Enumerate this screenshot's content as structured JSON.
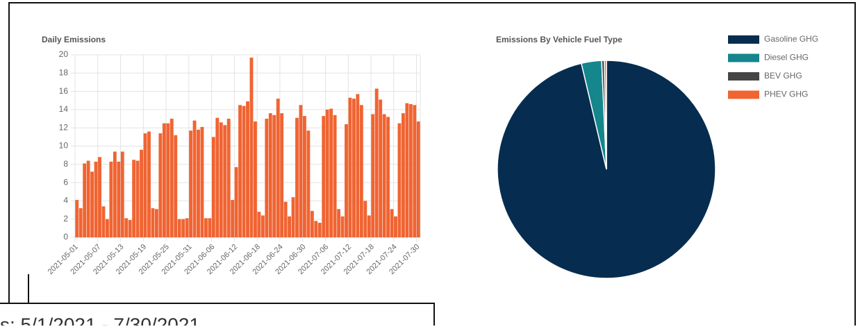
{
  "chart_data": [
    {
      "type": "bar",
      "title": "Daily Emissions",
      "color": "#f06432",
      "grid": true,
      "ylim": [
        0,
        20
      ],
      "yticks": [
        0,
        2,
        4,
        6,
        8,
        10,
        12,
        14,
        16,
        18,
        20
      ],
      "categories": [
        "2021-05-01",
        null,
        null,
        null,
        null,
        null,
        "2021-05-07",
        null,
        null,
        null,
        null,
        null,
        "2021-05-13",
        null,
        null,
        null,
        null,
        null,
        "2021-05-19",
        null,
        null,
        null,
        null,
        null,
        "2021-05-25",
        null,
        null,
        null,
        null,
        null,
        "2021-05-31",
        null,
        null,
        null,
        null,
        null,
        "2021-06-06",
        null,
        null,
        null,
        null,
        null,
        "2021-06-12",
        null,
        null,
        null,
        null,
        null,
        "2021-06-18",
        null,
        null,
        null,
        null,
        null,
        "2021-06-24",
        null,
        null,
        null,
        null,
        null,
        "2021-06-30",
        null,
        null,
        null,
        null,
        null,
        "2021-07-06",
        null,
        null,
        null,
        null,
        null,
        "2021-07-12",
        null,
        null,
        null,
        null,
        null,
        "2021-07-18",
        null,
        null,
        null,
        null,
        null,
        "2021-07-24",
        null,
        null,
        null,
        null,
        null,
        "2021-07-30"
      ],
      "values": [
        4.1,
        3.2,
        8.1,
        8.4,
        7.2,
        8.3,
        8.8,
        3.4,
        2.0,
        8.3,
        9.4,
        8.3,
        9.4,
        2.1,
        1.9,
        8.5,
        8.4,
        9.6,
        11.4,
        11.6,
        3.2,
        3.1,
        11.4,
        12.5,
        12.5,
        13.0,
        11.2,
        2.0,
        2.0,
        2.1,
        11.7,
        12.8,
        11.8,
        12.1,
        2.1,
        2.1,
        11.0,
        13.1,
        12.6,
        12.3,
        13.0,
        4.1,
        7.7,
        14.5,
        14.4,
        14.9,
        19.7,
        12.7,
        2.8,
        2.4,
        13.0,
        13.6,
        13.4,
        15.2,
        13.6,
        3.9,
        2.3,
        4.4,
        13.1,
        14.5,
        13.3,
        11.7,
        2.9,
        1.8,
        1.6,
        13.3,
        14.0,
        14.1,
        13.4,
        3.1,
        2.3,
        12.4,
        15.3,
        15.2,
        15.7,
        14.5,
        4.0,
        2.4,
        13.5,
        16.3,
        15.1,
        13.5,
        13.2,
        3.1,
        2.3,
        12.5,
        13.6,
        14.7,
        14.6,
        14.5,
        12.7
      ]
    },
    {
      "type": "pie",
      "title": "Emissions By Vehicle Fuel Type",
      "legend": "top-right",
      "series": [
        {
          "name": "Gasoline GHG",
          "color": "#062d4f",
          "values": [
            96.3
          ]
        },
        {
          "name": "Diesel GHG",
          "color": "#14868c",
          "values": [
            3.0
          ]
        },
        {
          "name": "BEV GHG",
          "color": "#454545",
          "values": [
            0.4
          ]
        },
        {
          "name": "PHEV GHG",
          "color": "#f06432",
          "values": [
            0.3
          ]
        }
      ]
    }
  ],
  "date_range": "s: 5/1/2021 - 7/30/2021"
}
